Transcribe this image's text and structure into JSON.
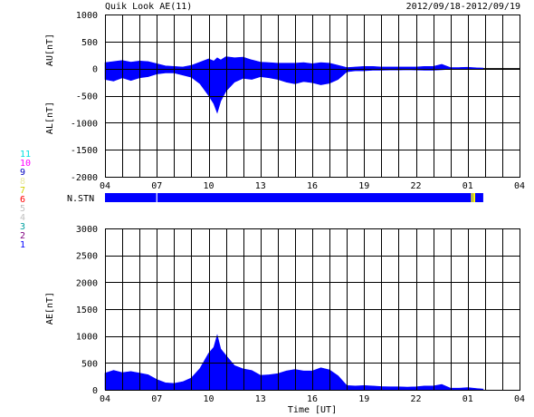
{
  "header": {
    "title": "Quik Look AE(11)",
    "date_range": "2012/09/18-2012/09/19"
  },
  "colors": {
    "data_fill": "#0000ff",
    "grid": "#000000",
    "background": "#ffffff",
    "gap_marker": "#ffff00"
  },
  "station_legend": [
    {
      "label": "11",
      "color": "#00e0e0"
    },
    {
      "label": "10",
      "color": "#ff00ff"
    },
    {
      "label": "9",
      "color": "#0000c0"
    },
    {
      "label": "8",
      "color": "#e8e8a0"
    },
    {
      "label": "7",
      "color": "#d0d000"
    },
    {
      "label": "6",
      "color": "#ff0000"
    },
    {
      "label": "5",
      "color": "#c0c0c0"
    },
    {
      "label": "4",
      "color": "#c0c0c0"
    },
    {
      "label": "3",
      "color": "#00a0a0"
    },
    {
      "label": "2",
      "color": "#800080"
    },
    {
      "label": "1",
      "color": "#0000ff"
    }
  ],
  "chart_data": [
    {
      "type": "area",
      "panel": "AU/AL",
      "ylabel_upper": "AU[nT]",
      "ylabel_lower": "AL[nT]",
      "ylim": [
        -2000,
        1000
      ],
      "yticks": [
        1000,
        500,
        0,
        -500,
        -1000,
        -1500,
        -2000
      ],
      "xlim": [
        4,
        28
      ],
      "xtick_labels": [
        "04",
        "07",
        "10",
        "13",
        "16",
        "19",
        "22",
        "01",
        "04"
      ],
      "grid": true,
      "data_end_hour": 25.9,
      "x": [
        4,
        4.5,
        5,
        5.5,
        6,
        6.5,
        7,
        7.5,
        8,
        8.5,
        9,
        9.5,
        10,
        10.3,
        10.5,
        10.7,
        11,
        11.5,
        12,
        12.5,
        13,
        13.5,
        14,
        14.5,
        15,
        15.5,
        16,
        16.5,
        17,
        17.5,
        18,
        18.5,
        19,
        19.5,
        20,
        20.5,
        21,
        21.5,
        22,
        22.5,
        23,
        23.5,
        24,
        24.5,
        25,
        25.5,
        25.9
      ],
      "series": [
        {
          "name": "AU",
          "values": [
            110,
            130,
            150,
            120,
            140,
            130,
            90,
            50,
            40,
            30,
            60,
            120,
            180,
            140,
            200,
            160,
            220,
            200,
            210,
            160,
            120,
            110,
            100,
            100,
            100,
            110,
            90,
            110,
            100,
            60,
            20,
            30,
            40,
            40,
            30,
            30,
            30,
            30,
            30,
            40,
            40,
            80,
            20,
            20,
            25,
            15,
            10
          ]
        },
        {
          "name": "AL",
          "values": [
            -200,
            -230,
            -170,
            -220,
            -170,
            -150,
            -100,
            -80,
            -80,
            -120,
            -160,
            -280,
            -500,
            -650,
            -820,
            -600,
            -420,
            -250,
            -180,
            -200,
            -150,
            -170,
            -200,
            -250,
            -280,
            -240,
            -260,
            -300,
            -270,
            -200,
            -60,
            -40,
            -40,
            -30,
            -30,
            -25,
            -25,
            -20,
            -25,
            -30,
            -30,
            -20,
            -10,
            -10,
            -15,
            -10,
            -5
          ]
        }
      ]
    },
    {
      "type": "area",
      "panel": "AE",
      "ylabel": "AE[nT]",
      "xlabel": "Time [UT]",
      "ylim": [
        0,
        3000
      ],
      "yticks": [
        3000,
        2500,
        2000,
        1500,
        1000,
        500,
        0
      ],
      "xlim": [
        4,
        28
      ],
      "xtick_labels": [
        "04",
        "07",
        "10",
        "13",
        "16",
        "19",
        "22",
        "01",
        "04"
      ],
      "grid": true,
      "x": [
        4,
        4.5,
        5,
        5.5,
        6,
        6.5,
        7,
        7.5,
        8,
        8.5,
        9,
        9.5,
        10,
        10.3,
        10.5,
        10.7,
        11,
        11.5,
        12,
        12.5,
        13,
        13.5,
        14,
        14.5,
        15,
        15.5,
        16,
        16.5,
        17,
        17.5,
        18,
        18.5,
        19,
        19.5,
        20,
        20.5,
        21,
        21.5,
        22,
        22.5,
        23,
        23.5,
        24,
        24.5,
        25,
        25.5,
        25.9
      ],
      "values": [
        310,
        360,
        320,
        340,
        310,
        280,
        190,
        130,
        120,
        150,
        220,
        400,
        680,
        790,
        1020,
        760,
        640,
        450,
        390,
        360,
        270,
        280,
        300,
        350,
        380,
        350,
        350,
        410,
        370,
        260,
        80,
        70,
        80,
        70,
        60,
        55,
        55,
        50,
        55,
        70,
        70,
        100,
        30,
        30,
        40,
        25,
        15
      ]
    }
  ],
  "station_bar": {
    "label": "N.STN",
    "gap_hours": [
      7.0
    ],
    "yellow_marks": [
      25.25,
      25.38
    ]
  }
}
